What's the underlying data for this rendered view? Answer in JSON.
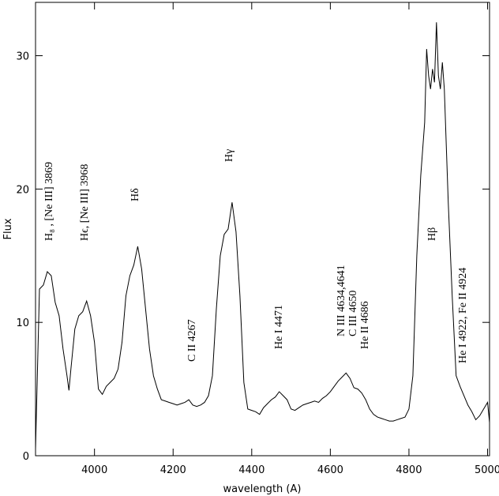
{
  "chart_data": {
    "type": "line",
    "xlabel": "wavelength (A)",
    "ylabel": "Flux",
    "xlim": [
      3850,
      5005
    ],
    "ylim": [
      0,
      34
    ],
    "xticks": [
      4000,
      4200,
      4400,
      4600,
      4800,
      5000
    ],
    "yticks": [
      0,
      10,
      20,
      30
    ],
    "color": "#000000",
    "annotations": [
      "H₈ , [Ne III] 3869",
      "Hϵ, [Ne III] 3968",
      "Hδ",
      "C II 4267",
      "Hγ",
      "He I 4471",
      "N III 4634,4641",
      "C III 4650",
      "He II 4686",
      "Hβ",
      "He I 4922, Fe II 4924"
    ],
    "x": [
      3850,
      3860,
      3870,
      3880,
      3890,
      3900,
      3910,
      3920,
      3930,
      3935,
      3940,
      3950,
      3960,
      3970,
      3980,
      3990,
      4000,
      4010,
      4020,
      4030,
      4040,
      4050,
      4060,
      4070,
      4080,
      4090,
      4100,
      4110,
      4120,
      4130,
      4140,
      4150,
      4160,
      4170,
      4180,
      4190,
      4200,
      4210,
      4220,
      4230,
      4240,
      4250,
      4260,
      4270,
      4280,
      4290,
      4300,
      4310,
      4320,
      4330,
      4340,
      4350,
      4360,
      4370,
      4380,
      4390,
      4400,
      4410,
      4420,
      4430,
      4440,
      4450,
      4460,
      4470,
      4480,
      4490,
      4500,
      4510,
      4520,
      4530,
      4540,
      4550,
      4560,
      4570,
      4580,
      4590,
      4600,
      4610,
      4620,
      4630,
      4640,
      4650,
      4660,
      4670,
      4680,
      4690,
      4700,
      4710,
      4720,
      4730,
      4740,
      4750,
      4760,
      4770,
      4780,
      4790,
      4800,
      4810,
      4820,
      4830,
      4840,
      4845,
      4850,
      4855,
      4860,
      4865,
      4870,
      4875,
      4880,
      4885,
      4890,
      4900,
      4910,
      4920,
      4930,
      4940,
      4950,
      4960,
      4970,
      4980,
      4990,
      5000,
      5005
    ],
    "values": [
      0.5,
      12.5,
      12.8,
      13.8,
      13.5,
      11.5,
      10.5,
      8,
      6,
      4.9,
      6.5,
      9.5,
      10.5,
      10.8,
      11.6,
      10.5,
      8.5,
      5,
      4.6,
      5.2,
      5.5,
      5.8,
      6.5,
      8.5,
      12,
      13.5,
      14.3,
      15.7,
      14,
      11,
      8,
      6,
      5,
      4.2,
      4.1,
      4.0,
      3.9,
      3.8,
      3.9,
      4.0,
      4.2,
      3.8,
      3.7,
      3.8,
      4.0,
      4.5,
      6,
      11,
      15,
      16.6,
      17,
      19,
      16.8,
      12,
      5.5,
      3.5,
      3.4,
      3.3,
      3.1,
      3.6,
      3.9,
      4.2,
      4.4,
      4.8,
      4.5,
      4.2,
      3.5,
      3.4,
      3.6,
      3.8,
      3.9,
      4.0,
      4.1,
      4.0,
      4.3,
      4.5,
      4.8,
      5.2,
      5.6,
      5.9,
      6.2,
      5.8,
      5.1,
      5.0,
      4.7,
      4.2,
      3.5,
      3.1,
      2.9,
      2.8,
      2.7,
      2.6,
      2.6,
      2.7,
      2.8,
      2.9,
      3.5,
      6,
      15,
      21,
      25,
      30.5,
      28.5,
      27.5,
      29,
      28,
      32.5,
      28.5,
      27.5,
      29.5,
      27.5,
      19,
      12,
      6,
      5.2,
      4.5,
      3.8,
      3.3,
      2.7,
      3,
      3.5,
      4,
      2.5
    ]
  }
}
